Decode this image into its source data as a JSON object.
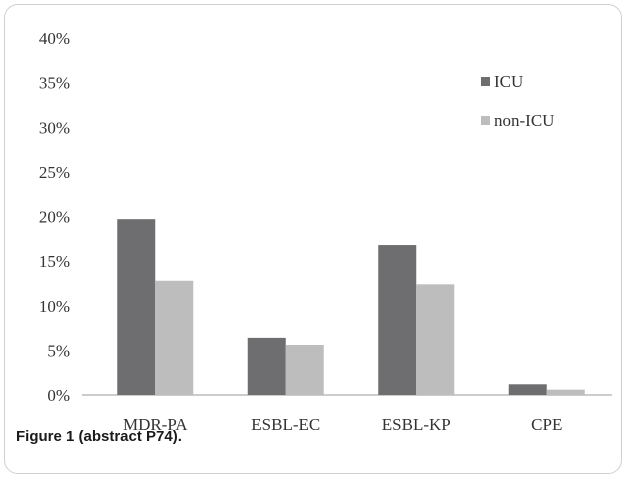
{
  "caption": "Figure 1 (abstract P74).",
  "chart_data": {
    "type": "bar",
    "categories": [
      "MDR-PA",
      "ESBL-EC",
      "ESBL-KP",
      "CPE"
    ],
    "series": [
      {
        "name": "ICU",
        "values": [
          19.7,
          6.4,
          16.8,
          1.2
        ],
        "color": "#6e6e70"
      },
      {
        "name": "non-ICU",
        "values": [
          12.8,
          5.6,
          12.4,
          0.6
        ],
        "color": "#bdbdbd"
      }
    ],
    "ylim": [
      0,
      40
    ],
    "yticks": [
      "0%",
      "5%",
      "10%",
      "15%",
      "20%",
      "25%",
      "30%",
      "35%",
      "40%"
    ],
    "grid": false,
    "legend_position": "top-right"
  }
}
